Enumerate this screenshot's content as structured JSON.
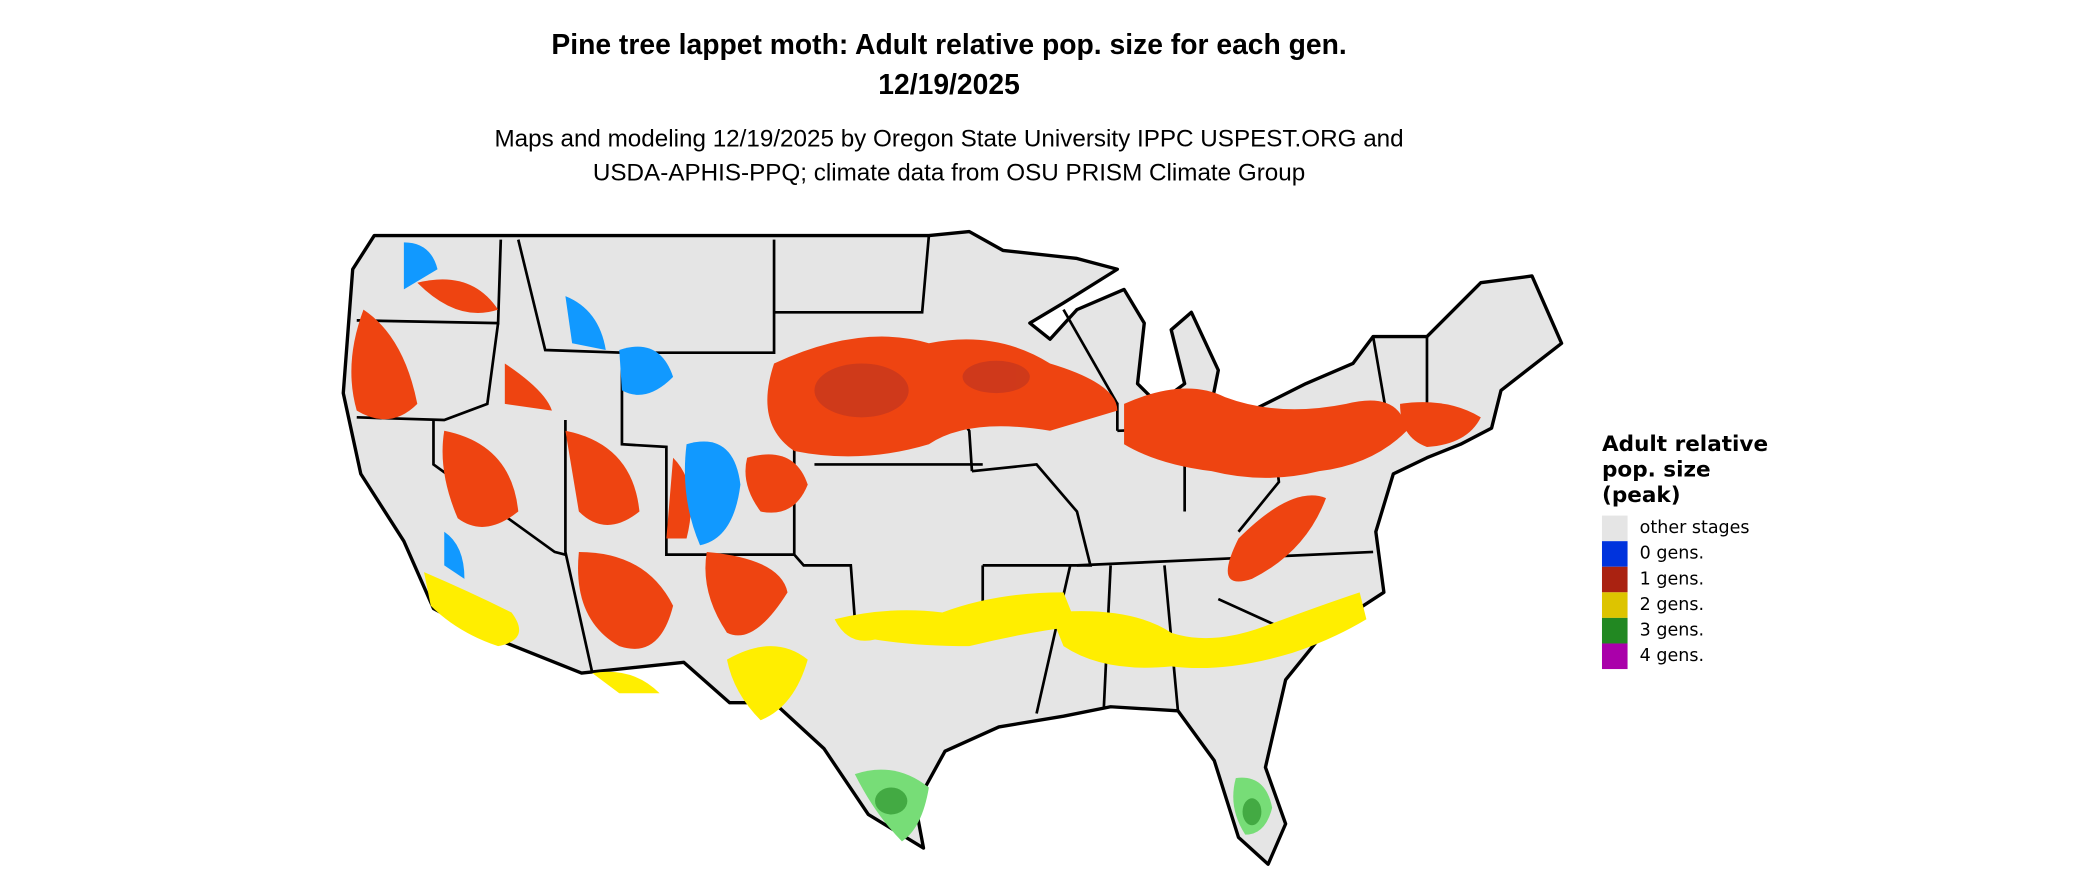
{
  "title": {
    "line1": "Pine tree lappet moth: Adult relative pop. size for each gen.",
    "line2": "12/19/2025"
  },
  "subtitle": {
    "line1": "Maps and modeling 12/19/2025 by Oregon State University IPPC USPEST.ORG and",
    "line2": "USDA-APHIS-PPQ; climate data from OSU PRISM Climate Group"
  },
  "legend": {
    "title_lines": [
      "Adult relative",
      "pop. size",
      "(peak)"
    ],
    "items": [
      {
        "label": "other stages",
        "color": "#e5e5e5"
      },
      {
        "label": "0 gens.",
        "color": "#0033dd"
      },
      {
        "label": "1 gens.",
        "color": "#aa2211"
      },
      {
        "label": "2 gens.",
        "color": "#ddc400"
      },
      {
        "label": "3 gens.",
        "color": "#228822"
      },
      {
        "label": "4 gens.",
        "color": "#aa00aa"
      }
    ]
  },
  "map_colors": {
    "land": "#e5e5e5",
    "border": "#000000",
    "one_gen_bright": "#ee4411",
    "two_gen_bright": "#ffee00",
    "three_gen_light": "#77dd77",
    "zero_gen_light": "#1199ff"
  }
}
